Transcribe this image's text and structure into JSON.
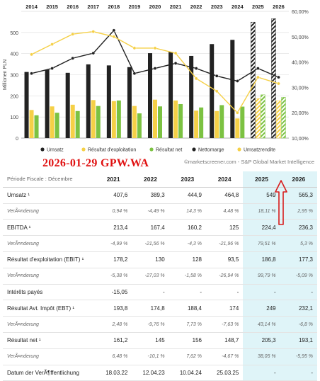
{
  "chart_data": {
    "type": "bar",
    "years": [
      "2014",
      "2015",
      "2016",
      "2017",
      "2018",
      "2019",
      "2020",
      "2021",
      "2022",
      "2023",
      "2024",
      "2025",
      "2026"
    ],
    "estimate_years": [
      "2025",
      "2026"
    ],
    "y_left_ticks": [
      "0",
      "100",
      "200",
      "300",
      "400",
      "500"
    ],
    "y_left_label": "Millionen PLN",
    "y_left_range": [
      0,
      600
    ],
    "y_right_ticks": [
      "10,00%",
      "20,00%",
      "30,00%",
      "40,00%",
      "50,00%",
      "60,00%"
    ],
    "y_right_range": [
      10,
      60
    ],
    "series": [
      {
        "name": "Umsatz",
        "kind": "bar",
        "color": "#222222",
        "values": [
          313,
          323,
          309,
          349,
          344,
          336,
          402,
          408,
          389,
          445,
          465,
          549,
          565
        ]
      },
      {
        "name": "Résultat d'exploitation",
        "kind": "bar",
        "color": "#f5d047",
        "values": [
          133,
          150,
          158,
          180,
          175,
          152,
          182,
          178,
          130,
          128,
          93,
          187,
          177
        ]
      },
      {
        "name": "Résultat net",
        "kind": "bar",
        "color": "#7cc242",
        "values": [
          108,
          120,
          128,
          152,
          178,
          117,
          150,
          161,
          145,
          156,
          149,
          205,
          193
        ]
      },
      {
        "name": "Nettomarge",
        "kind": "line",
        "color": "#222222",
        "values": [
          35.5,
          37.5,
          41.5,
          43.5,
          52.5,
          35.5,
          37.5,
          39.5,
          37.5,
          34.5,
          32.5,
          37.5,
          34.0
        ]
      },
      {
        "name": "Umsatzrendite",
        "kind": "line",
        "color": "#f5d047",
        "values": [
          43.0,
          47.0,
          51.0,
          52.0,
          50.0,
          45.5,
          45.5,
          43.5,
          33.5,
          28.5,
          20.0,
          34.0,
          31.5
        ]
      }
    ]
  },
  "overlay_text": "2026-01-29   GPW.WA",
  "copyright": "©marketscreener.com - S&P Global Market Intelligence",
  "colors": {
    "estimate_bg": "#dff4f8",
    "arrow": "#d81b1b",
    "grid": "#dddddd"
  },
  "table": {
    "period_label": "Période Fiscale : Décembre",
    "columns": [
      "2021",
      "2022",
      "2023",
      "2024",
      "2025",
      "2026"
    ],
    "rows": [
      {
        "label": "Umsatz ¹",
        "sub": false,
        "values": [
          "407,6",
          "389,3",
          "444,9",
          "464,8",
          "549",
          "565,3"
        ]
      },
      {
        "label": "VerÃ¤nderung",
        "sub": true,
        "values": [
          "0,94 %",
          "-4,49 %",
          "14,3 %",
          "4,48 %",
          "18,11 %",
          "2,95 %"
        ]
      },
      {
        "label": "EBITDA ¹",
        "sub": false,
        "values": [
          "213,4",
          "167,4",
          "160,2",
          "125",
          "224,4",
          "236,3"
        ]
      },
      {
        "label": "VerÃ¤nderung",
        "sub": true,
        "values": [
          "-4,99 %",
          "-21,56 %",
          "-4,3 %",
          "-21,96 %",
          "79,51 %",
          "5,3 %"
        ]
      },
      {
        "label": "Résultat d'exploitation (EBIT) ¹",
        "sub": false,
        "values": [
          "178,2",
          "130",
          "128",
          "93,5",
          "186,8",
          "177,3"
        ]
      },
      {
        "label": "VerÃ¤nderung",
        "sub": true,
        "values": [
          "-5,38 %",
          "-27,03 %",
          "-1,58 %",
          "-26,94 %",
          "99,79 %",
          "-5,09 %"
        ]
      },
      {
        "label": "Intérêts payés",
        "sub": false,
        "values": [
          "-15,05",
          "-",
          "-",
          "-",
          "-",
          "-"
        ]
      },
      {
        "label": "Résultat Avt. Impôt (EBT) ¹",
        "sub": false,
        "values": [
          "193,8",
          "174,8",
          "188,4",
          "174",
          "249",
          "232,1"
        ]
      },
      {
        "label": "VerÃ¤nderung",
        "sub": true,
        "values": [
          "2,48 %",
          "-9,76 %",
          "7,73 %",
          "-7,63 %",
          "43,14 %",
          "-6,8 %"
        ]
      },
      {
        "label": "Résultat net ¹",
        "sub": false,
        "values": [
          "161,2",
          "145",
          "156",
          "148,7",
          "205,3",
          "193,1"
        ]
      },
      {
        "label": "VerÃ¤nderung",
        "sub": true,
        "values": [
          "6,48 %",
          "-10,1 %",
          "7,62 %",
          "-4,67 %",
          "38,05 %",
          "-5,95 %"
        ]
      },
      {
        "label": "Datum der VerÃ¶ffentlichung",
        "sub": false,
        "values": [
          "18.03.22",
          "12.04.23",
          "10.04.24",
          "25.03.25",
          "-",
          "-"
        ]
      }
    ]
  }
}
